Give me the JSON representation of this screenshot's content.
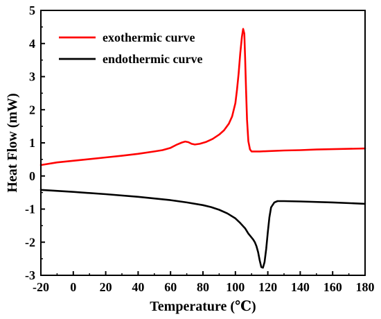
{
  "chart_data": {
    "type": "line",
    "title": "",
    "xlabel": "Temperature (℃)",
    "ylabel": "Heat Flow (mW)",
    "xlim": [
      -20,
      180
    ],
    "ylim": [
      -3,
      5
    ],
    "xticks": [
      -20,
      0,
      20,
      40,
      60,
      80,
      100,
      120,
      140,
      160,
      180
    ],
    "yticks": [
      -3,
      -2,
      -1,
      0,
      1,
      2,
      3,
      4,
      5
    ],
    "grid": false,
    "legend_position": "top-left",
    "series": [
      {
        "name": "exothermic curve",
        "color": "#ff0000",
        "x": [
          -20,
          -10,
          0,
          10,
          20,
          30,
          40,
          50,
          55,
          60,
          64,
          67,
          69,
          71,
          73,
          75,
          78,
          82,
          86,
          90,
          93,
          96,
          98,
          100,
          101,
          102,
          103,
          104,
          104.8,
          105.5,
          106,
          106.6,
          107.2,
          108,
          109,
          110,
          112,
          115,
          120,
          130,
          140,
          150,
          160,
          170,
          180
        ],
        "y": [
          0.33,
          0.41,
          0.46,
          0.51,
          0.56,
          0.61,
          0.67,
          0.74,
          0.78,
          0.85,
          0.95,
          1.01,
          1.04,
          1.02,
          0.97,
          0.95,
          0.97,
          1.03,
          1.12,
          1.25,
          1.38,
          1.58,
          1.8,
          2.2,
          2.6,
          3.1,
          3.7,
          4.2,
          4.44,
          4.3,
          3.6,
          2.6,
          1.7,
          1.05,
          0.8,
          0.74,
          0.74,
          0.74,
          0.75,
          0.77,
          0.78,
          0.8,
          0.81,
          0.82,
          0.83
        ]
      },
      {
        "name": "endothermic curve",
        "color": "#000000",
        "x": [
          -20,
          0,
          20,
          40,
          60,
          70,
          80,
          85,
          90,
          95,
          100,
          103,
          106,
          108,
          110,
          111,
          112,
          113,
          114,
          115,
          116,
          117,
          118,
          119,
          120,
          121,
          122,
          124,
          126,
          130,
          140,
          160,
          180
        ],
        "y": [
          -0.42,
          -0.48,
          -0.55,
          -0.63,
          -0.73,
          -0.8,
          -0.88,
          -0.94,
          -1.02,
          -1.13,
          -1.28,
          -1.42,
          -1.58,
          -1.74,
          -1.86,
          -1.92,
          -2.0,
          -2.12,
          -2.3,
          -2.55,
          -2.75,
          -2.77,
          -2.6,
          -2.2,
          -1.7,
          -1.25,
          -0.95,
          -0.8,
          -0.76,
          -0.76,
          -0.77,
          -0.8,
          -0.84
        ]
      }
    ]
  }
}
